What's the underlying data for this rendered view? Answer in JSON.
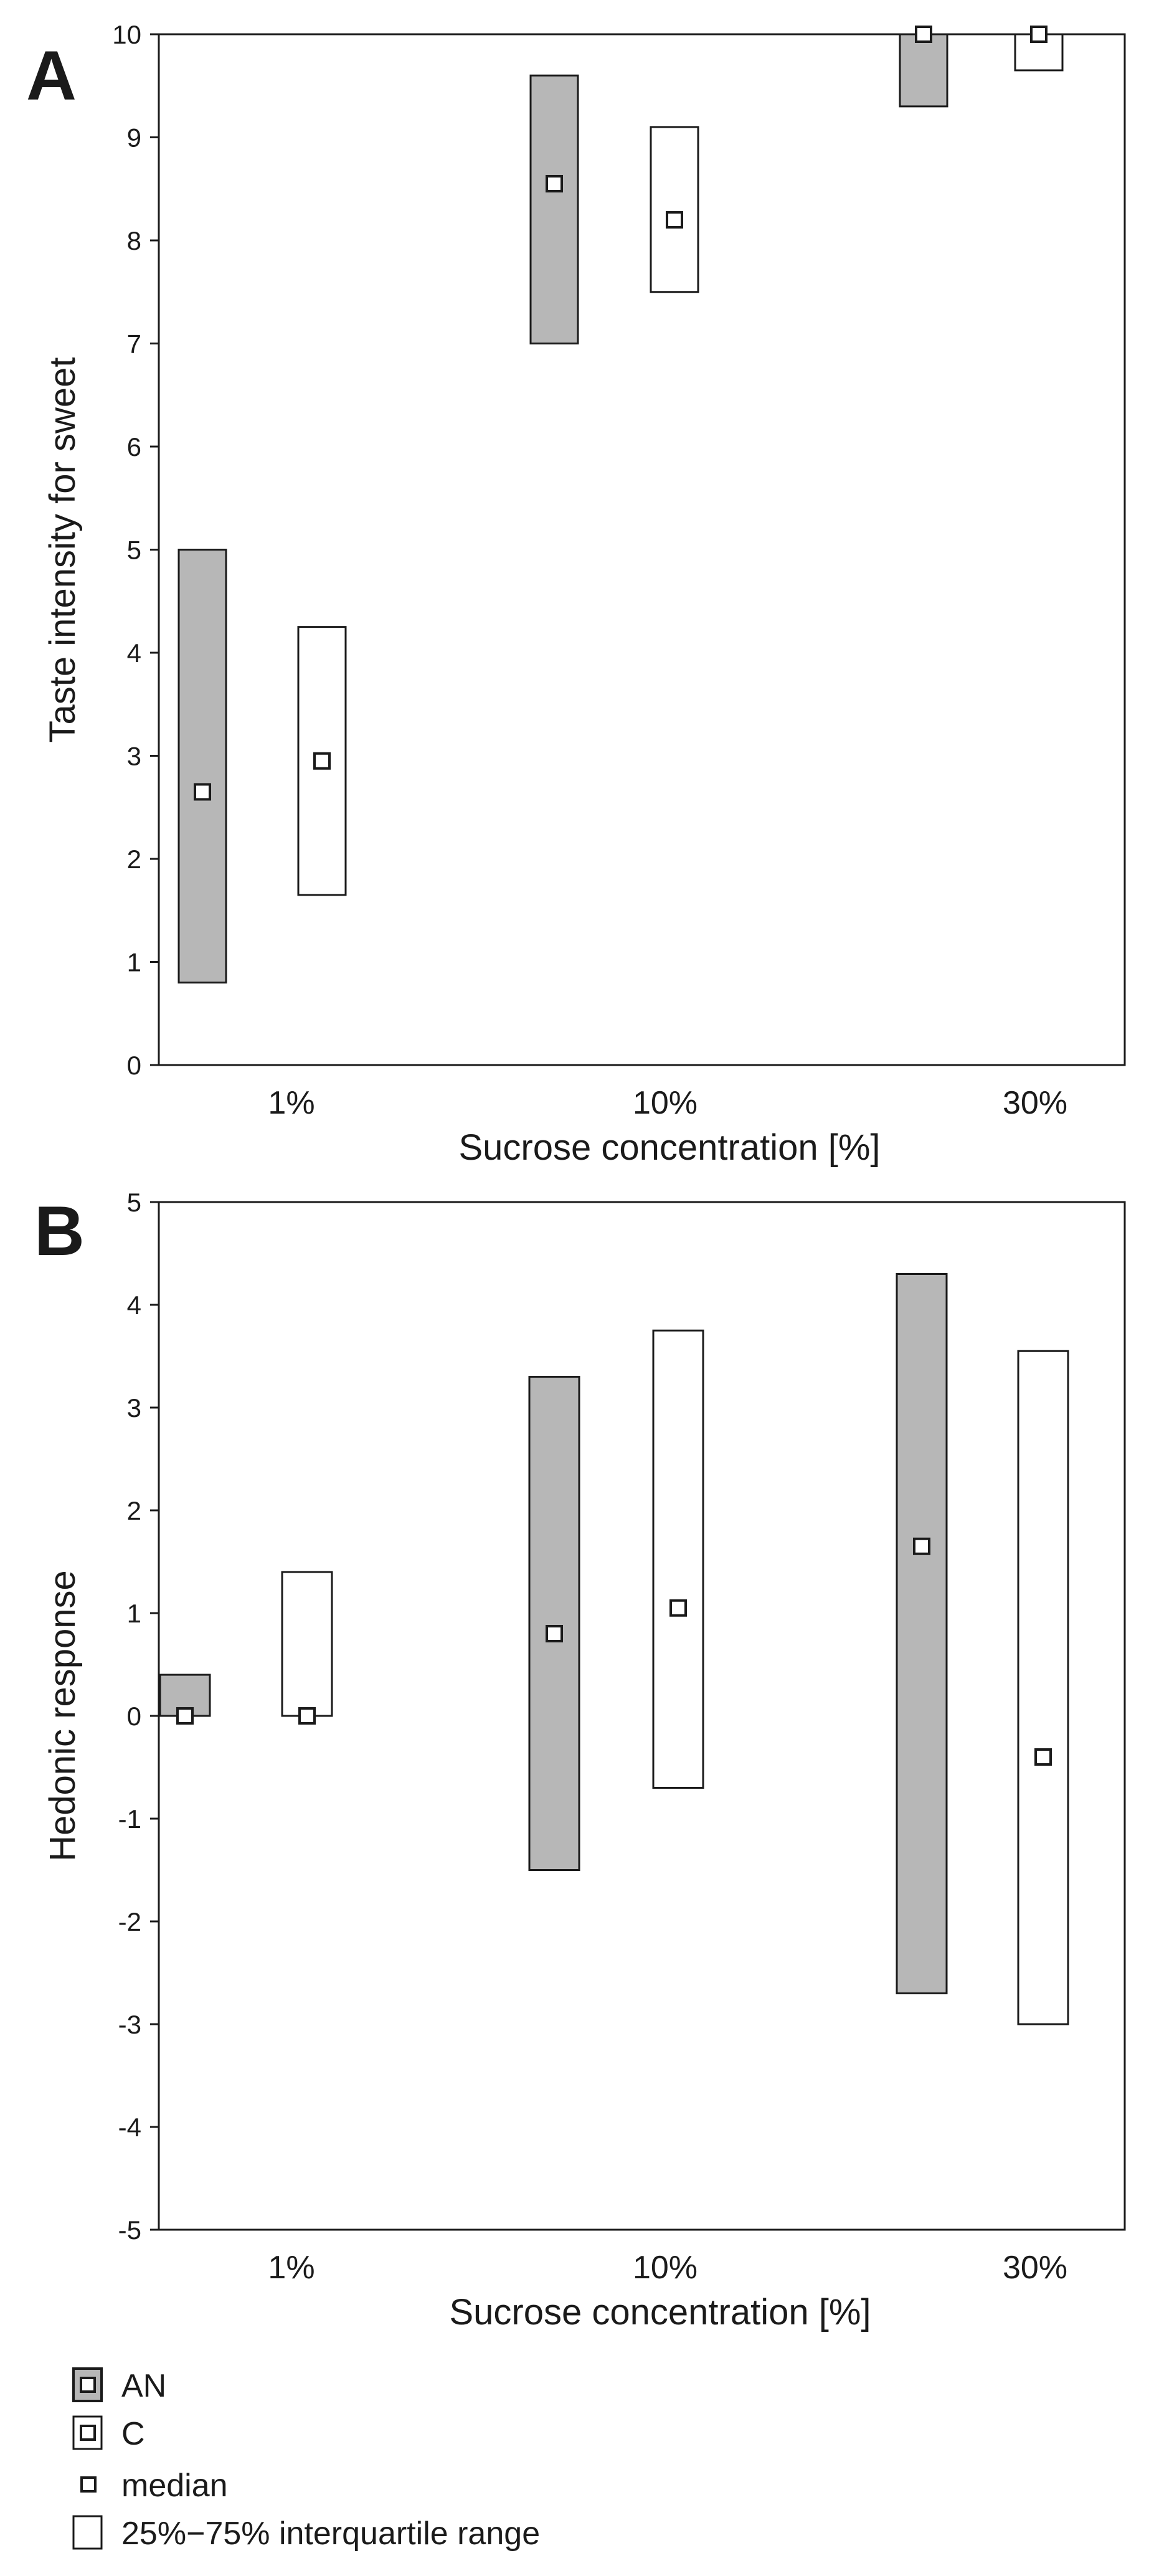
{
  "figure": {
    "legend": {
      "an_label": "AN",
      "c_label": "C",
      "median_label": "median",
      "iqr_label": "25%−75% interquartile range"
    },
    "colors": {
      "an_fill": "#b7b7b7",
      "c_fill": "#ffffff",
      "stroke": "#1a1a1a"
    }
  },
  "chart_data": [
    {
      "type": "box",
      "panel_label": "A",
      "xlabel": "Sucrose concentration [%]",
      "ylabel": "Taste intensity for sweet",
      "categories": [
        "1%",
        "10%",
        "30%"
      ],
      "ylim": [
        0,
        10
      ],
      "yticks": [
        0,
        1,
        2,
        3,
        4,
        5,
        6,
        7,
        8,
        9,
        10
      ],
      "series": [
        {
          "name": "AN",
          "q1": [
            0.8,
            7.0,
            9.3
          ],
          "median": [
            2.65,
            8.55,
            10.0
          ],
          "q3": [
            5.0,
            9.6,
            10.0
          ]
        },
        {
          "name": "C",
          "q1": [
            1.65,
            7.5,
            9.65
          ],
          "median": [
            2.95,
            8.2,
            10.0
          ],
          "q3": [
            4.25,
            9.1,
            10.0
          ]
        }
      ]
    },
    {
      "type": "box",
      "panel_label": "B",
      "xlabel": "Sucrose concentration [%]",
      "ylabel": "Hedonic response",
      "categories": [
        "1%",
        "10%",
        "30%"
      ],
      "ylim": [
        -5,
        5
      ],
      "yticks": [
        5,
        4,
        3,
        2,
        1,
        0,
        -1,
        -2,
        -3,
        -4,
        -5
      ],
      "series": [
        {
          "name": "AN",
          "q1": [
            0.0,
            -1.5,
            -2.7
          ],
          "median": [
            0.0,
            0.8,
            1.65
          ],
          "q3": [
            0.4,
            3.3,
            4.3
          ]
        },
        {
          "name": "C",
          "q1": [
            0.0,
            -0.7,
            -3.0
          ],
          "median": [
            0.0,
            1.05,
            -0.4
          ],
          "q3": [
            1.4,
            3.75,
            3.55
          ]
        }
      ]
    }
  ]
}
